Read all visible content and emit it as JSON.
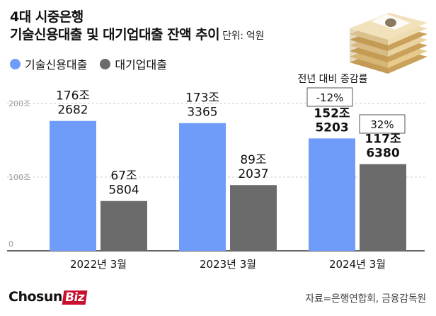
{
  "header": {
    "title_line1": "4대 시중은행",
    "title_line2": "기술신용대출 및 대기업대출 잔액 추이",
    "unit": "단위: 억원"
  },
  "legend": [
    {
      "label": "기술신용대출",
      "color": "#6f9cf8"
    },
    {
      "label": "대기업대출",
      "color": "#6b6b6b"
    }
  ],
  "annotation": {
    "header": "전년 대비 증감률",
    "tech_change": "-12%",
    "corp_change": "32%"
  },
  "footer": {
    "logo_main": "Chosun",
    "logo_sub": "Biz",
    "source": "자료=은행연합회, 금융감독원"
  },
  "chart_data": {
    "type": "bar",
    "categories": [
      "2022년 3월",
      "2023년 3월",
      "2024년 3월"
    ],
    "y_ticks": [
      {
        "value": 0,
        "label": "0"
      },
      {
        "value": 1000000,
        "label": "100조"
      },
      {
        "value": 2000000,
        "label": "200조"
      }
    ],
    "ylim": [
      0,
      2000000
    ],
    "series": [
      {
        "name": "기술신용대출",
        "color": "#6f9cf8",
        "values": [
          1762682,
          1733365,
          1525203
        ],
        "labels": [
          [
            "176조",
            "2682"
          ],
          [
            "173조",
            "3365"
          ],
          [
            "152조",
            "5203"
          ]
        ]
      },
      {
        "name": "대기업대출",
        "color": "#6b6b6b",
        "values": [
          675804,
          892037,
          1176380
        ],
        "labels": [
          [
            "67조",
            "5804"
          ],
          [
            "89조",
            "2037"
          ],
          [
            "117조",
            "6380"
          ]
        ]
      }
    ]
  }
}
